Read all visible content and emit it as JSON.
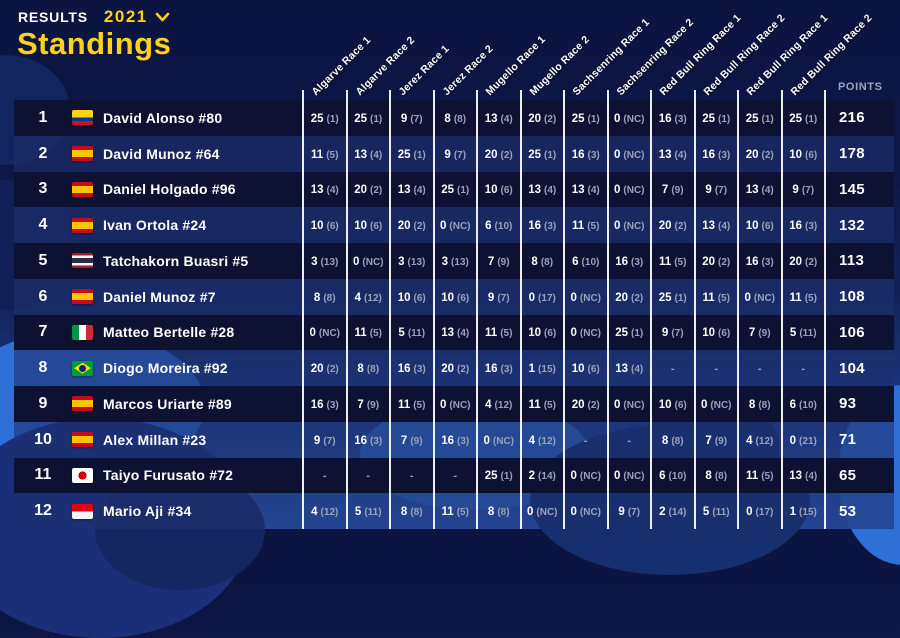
{
  "header": {
    "results_label": "RESULTS",
    "year": "2021",
    "title": "Standings"
  },
  "colors": {
    "accent_yellow": "#ffd11f",
    "background_top": "#0c1440",
    "background_bottom": "#2c63c5",
    "row_dark": "#0d1232",
    "muted_text": "#99a1bb"
  },
  "table": {
    "dash": "-",
    "points_label": "POINTS",
    "race_columns": [
      "Algarve Race 1",
      "Algarve Race 2",
      "Jerez Race 1",
      "Jerez Race 2",
      "Mugello Race 1",
      "Mugello Race 2",
      "Sachsenring Race 1",
      "Sachsenring Race 2",
      "Red Bull Ring Race 1",
      "Red Bull Ring Race 2",
      "Red Bull Ring Race 1",
      "Red Bull Ring Race 2"
    ],
    "rows": [
      {
        "rank": 1,
        "country": "colombia",
        "rider": "David Alonso #80",
        "points": 216,
        "results": [
          {
            "p": "25",
            "r": "1"
          },
          {
            "p": "25",
            "r": "1"
          },
          {
            "p": "9",
            "r": "7"
          },
          {
            "p": "8",
            "r": "8"
          },
          {
            "p": "13",
            "r": "4"
          },
          {
            "p": "20",
            "r": "2"
          },
          {
            "p": "25",
            "r": "1"
          },
          {
            "p": "0",
            "r": "NC"
          },
          {
            "p": "16",
            "r": "3"
          },
          {
            "p": "25",
            "r": "1"
          },
          {
            "p": "25",
            "r": "1"
          },
          {
            "p": "25",
            "r": "1"
          }
        ]
      },
      {
        "rank": 2,
        "country": "spain",
        "rider": "David Munoz #64",
        "points": 178,
        "results": [
          {
            "p": "11",
            "r": "5"
          },
          {
            "p": "13",
            "r": "4"
          },
          {
            "p": "25",
            "r": "1"
          },
          {
            "p": "9",
            "r": "7"
          },
          {
            "p": "20",
            "r": "2"
          },
          {
            "p": "25",
            "r": "1"
          },
          {
            "p": "16",
            "r": "3"
          },
          {
            "p": "0",
            "r": "NC"
          },
          {
            "p": "13",
            "r": "4"
          },
          {
            "p": "16",
            "r": "3"
          },
          {
            "p": "20",
            "r": "2"
          },
          {
            "p": "10",
            "r": "6"
          }
        ]
      },
      {
        "rank": 3,
        "country": "spain",
        "rider": "Daniel Holgado #96",
        "points": 145,
        "results": [
          {
            "p": "13",
            "r": "4"
          },
          {
            "p": "20",
            "r": "2"
          },
          {
            "p": "13",
            "r": "4"
          },
          {
            "p": "25",
            "r": "1"
          },
          {
            "p": "10",
            "r": "6"
          },
          {
            "p": "13",
            "r": "4"
          },
          {
            "p": "13",
            "r": "4"
          },
          {
            "p": "0",
            "r": "NC"
          },
          {
            "p": "7",
            "r": "9"
          },
          {
            "p": "9",
            "r": "7"
          },
          {
            "p": "13",
            "r": "4"
          },
          {
            "p": "9",
            "r": "7"
          }
        ]
      },
      {
        "rank": 4,
        "country": "spain",
        "rider": "Ivan Ortola #24",
        "points": 132,
        "results": [
          {
            "p": "10",
            "r": "6"
          },
          {
            "p": "10",
            "r": "6"
          },
          {
            "p": "20",
            "r": "2"
          },
          {
            "p": "0",
            "r": "NC"
          },
          {
            "p": "6",
            "r": "10"
          },
          {
            "p": "16",
            "r": "3"
          },
          {
            "p": "11",
            "r": "5"
          },
          {
            "p": "0",
            "r": "NC"
          },
          {
            "p": "20",
            "r": "2"
          },
          {
            "p": "13",
            "r": "4"
          },
          {
            "p": "10",
            "r": "6"
          },
          {
            "p": "16",
            "r": "3"
          }
        ]
      },
      {
        "rank": 5,
        "country": "thailand",
        "rider": "Tatchakorn Buasri #5",
        "points": 113,
        "results": [
          {
            "p": "3",
            "r": "13"
          },
          {
            "p": "0",
            "r": "NC"
          },
          {
            "p": "3",
            "r": "13"
          },
          {
            "p": "3",
            "r": "13"
          },
          {
            "p": "7",
            "r": "9"
          },
          {
            "p": "8",
            "r": "8"
          },
          {
            "p": "6",
            "r": "10"
          },
          {
            "p": "16",
            "r": "3"
          },
          {
            "p": "11",
            "r": "5"
          },
          {
            "p": "20",
            "r": "2"
          },
          {
            "p": "16",
            "r": "3"
          },
          {
            "p": "20",
            "r": "2"
          }
        ]
      },
      {
        "rank": 6,
        "country": "spain",
        "rider": "Daniel Munoz #7",
        "points": 108,
        "results": [
          {
            "p": "8",
            "r": "8"
          },
          {
            "p": "4",
            "r": "12"
          },
          {
            "p": "10",
            "r": "6"
          },
          {
            "p": "10",
            "r": "6"
          },
          {
            "p": "9",
            "r": "7"
          },
          {
            "p": "0",
            "r": "17"
          },
          {
            "p": "0",
            "r": "NC"
          },
          {
            "p": "20",
            "r": "2"
          },
          {
            "p": "25",
            "r": "1"
          },
          {
            "p": "11",
            "r": "5"
          },
          {
            "p": "0",
            "r": "NC"
          },
          {
            "p": "11",
            "r": "5"
          }
        ]
      },
      {
        "rank": 7,
        "country": "italy",
        "rider": "Matteo Bertelle #28",
        "points": 106,
        "results": [
          {
            "p": "0",
            "r": "NC"
          },
          {
            "p": "11",
            "r": "5"
          },
          {
            "p": "5",
            "r": "11"
          },
          {
            "p": "13",
            "r": "4"
          },
          {
            "p": "11",
            "r": "5"
          },
          {
            "p": "10",
            "r": "6"
          },
          {
            "p": "0",
            "r": "NC"
          },
          {
            "p": "25",
            "r": "1"
          },
          {
            "p": "9",
            "r": "7"
          },
          {
            "p": "10",
            "r": "6"
          },
          {
            "p": "7",
            "r": "9"
          },
          {
            "p": "5",
            "r": "11"
          }
        ]
      },
      {
        "rank": 8,
        "country": "brazil",
        "rider": "Diogo Moreira #92",
        "points": 104,
        "results": [
          {
            "p": "20",
            "r": "2"
          },
          {
            "p": "8",
            "r": "8"
          },
          {
            "p": "16",
            "r": "3"
          },
          {
            "p": "20",
            "r": "2"
          },
          {
            "p": "16",
            "r": "3"
          },
          {
            "p": "1",
            "r": "15"
          },
          {
            "p": "10",
            "r": "6"
          },
          {
            "p": "13",
            "r": "4"
          },
          null,
          null,
          null,
          null
        ]
      },
      {
        "rank": 9,
        "country": "spain",
        "rider": "Marcos Uriarte #89",
        "points": 93,
        "results": [
          {
            "p": "16",
            "r": "3"
          },
          {
            "p": "7",
            "r": "9"
          },
          {
            "p": "11",
            "r": "5"
          },
          {
            "p": "0",
            "r": "NC"
          },
          {
            "p": "4",
            "r": "12"
          },
          {
            "p": "11",
            "r": "5"
          },
          {
            "p": "20",
            "r": "2"
          },
          {
            "p": "0",
            "r": "NC"
          },
          {
            "p": "10",
            "r": "6"
          },
          {
            "p": "0",
            "r": "NC"
          },
          {
            "p": "8",
            "r": "8"
          },
          {
            "p": "6",
            "r": "10"
          }
        ]
      },
      {
        "rank": 10,
        "country": "spain",
        "rider": "Alex Millan #23",
        "points": 71,
        "results": [
          {
            "p": "9",
            "r": "7"
          },
          {
            "p": "16",
            "r": "3"
          },
          {
            "p": "7",
            "r": "9"
          },
          {
            "p": "16",
            "r": "3"
          },
          {
            "p": "0",
            "r": "NC"
          },
          {
            "p": "4",
            "r": "12"
          },
          null,
          null,
          {
            "p": "8",
            "r": "8"
          },
          {
            "p": "7",
            "r": "9"
          },
          {
            "p": "4",
            "r": "12"
          },
          {
            "p": "0",
            "r": "21"
          }
        ]
      },
      {
        "rank": 11,
        "country": "japan",
        "rider": "Taiyo Furusato #72",
        "points": 65,
        "results": [
          null,
          null,
          null,
          null,
          {
            "p": "25",
            "r": "1"
          },
          {
            "p": "2",
            "r": "14"
          },
          {
            "p": "0",
            "r": "NC"
          },
          {
            "p": "0",
            "r": "NC"
          },
          {
            "p": "6",
            "r": "10"
          },
          {
            "p": "8",
            "r": "8"
          },
          {
            "p": "11",
            "r": "5"
          },
          {
            "p": "13",
            "r": "4"
          }
        ]
      },
      {
        "rank": 12,
        "country": "indonesia",
        "rider": "Mario Aji #34",
        "points": 53,
        "results": [
          {
            "p": "4",
            "r": "12"
          },
          {
            "p": "5",
            "r": "11"
          },
          {
            "p": "8",
            "r": "8"
          },
          {
            "p": "11",
            "r": "5"
          },
          {
            "p": "8",
            "r": "8"
          },
          {
            "p": "0",
            "r": "NC"
          },
          {
            "p": "0",
            "r": "NC"
          },
          {
            "p": "9",
            "r": "7"
          },
          {
            "p": "2",
            "r": "14"
          },
          {
            "p": "5",
            "r": "11"
          },
          {
            "p": "0",
            "r": "17"
          },
          {
            "p": "1",
            "r": "15"
          }
        ]
      }
    ]
  }
}
